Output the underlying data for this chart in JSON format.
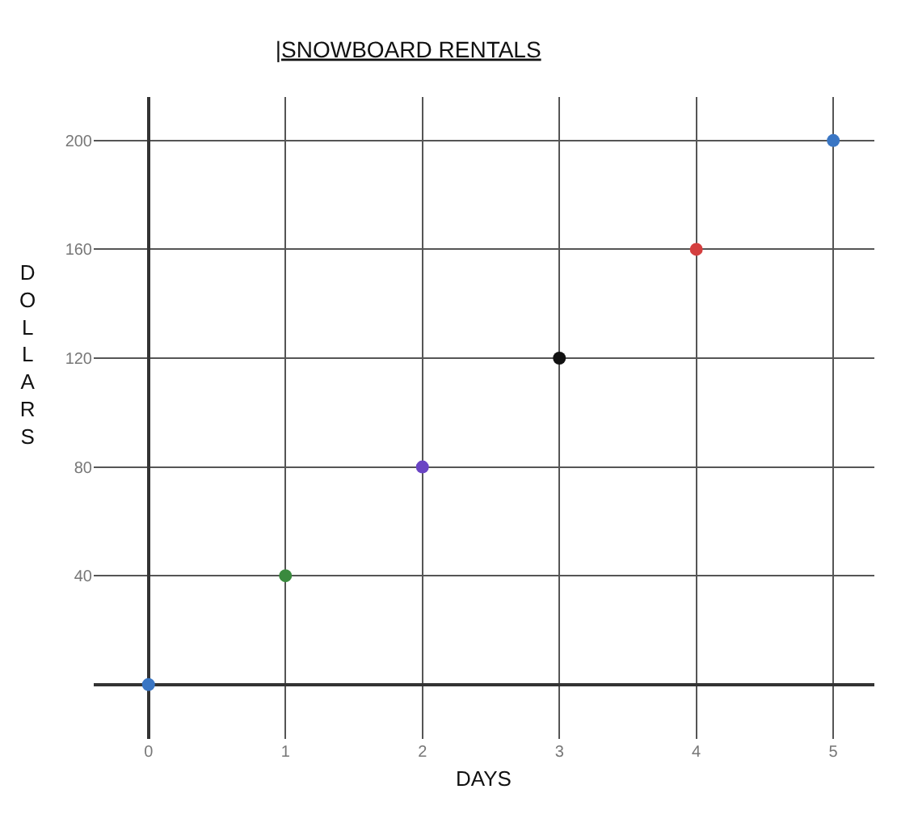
{
  "chart_data": {
    "type": "scatter",
    "title": "|SNOWBOARD RENTALS",
    "xlabel": "DAYS",
    "ylabel": "DOLLARS",
    "x": [
      0,
      1,
      2,
      3,
      4,
      5
    ],
    "series": [
      {
        "colors": [
          "#3a76c4",
          "#3a8a3e",
          "#6a44c4",
          "#111111",
          "#d43f3f",
          "#3a76c4"
        ],
        "values": [
          0,
          40,
          80,
          120,
          160,
          200
        ]
      }
    ],
    "xlim": [
      -0.4,
      5.3
    ],
    "ylim": [
      -20,
      216
    ],
    "xticks": [
      0,
      1,
      2,
      3,
      4,
      5
    ],
    "yticks": [
      40,
      80,
      120,
      160,
      200
    ],
    "grid": true,
    "marker": "circle"
  }
}
